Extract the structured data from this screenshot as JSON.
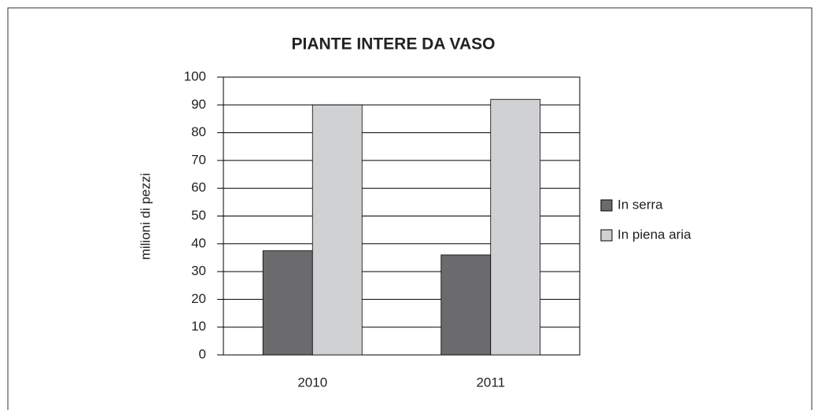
{
  "chart_data": {
    "type": "bar",
    "title": "PIANTE INTERE DA VASO",
    "y_label": "milioni di pezzi",
    "categories": [
      "2010",
      "2011"
    ],
    "series": [
      {
        "name": "In serra",
        "color": "#6b6b6e",
        "values": [
          37.5,
          36
        ]
      },
      {
        "name": "In piena aria",
        "color": "#d0d1d3",
        "values": [
          90,
          92
        ]
      }
    ],
    "ylim": [
      0,
      100
    ],
    "yticks": [
      0,
      10,
      20,
      30,
      40,
      50,
      60,
      70,
      80,
      90,
      100
    ],
    "grid": true,
    "legend": "right"
  }
}
